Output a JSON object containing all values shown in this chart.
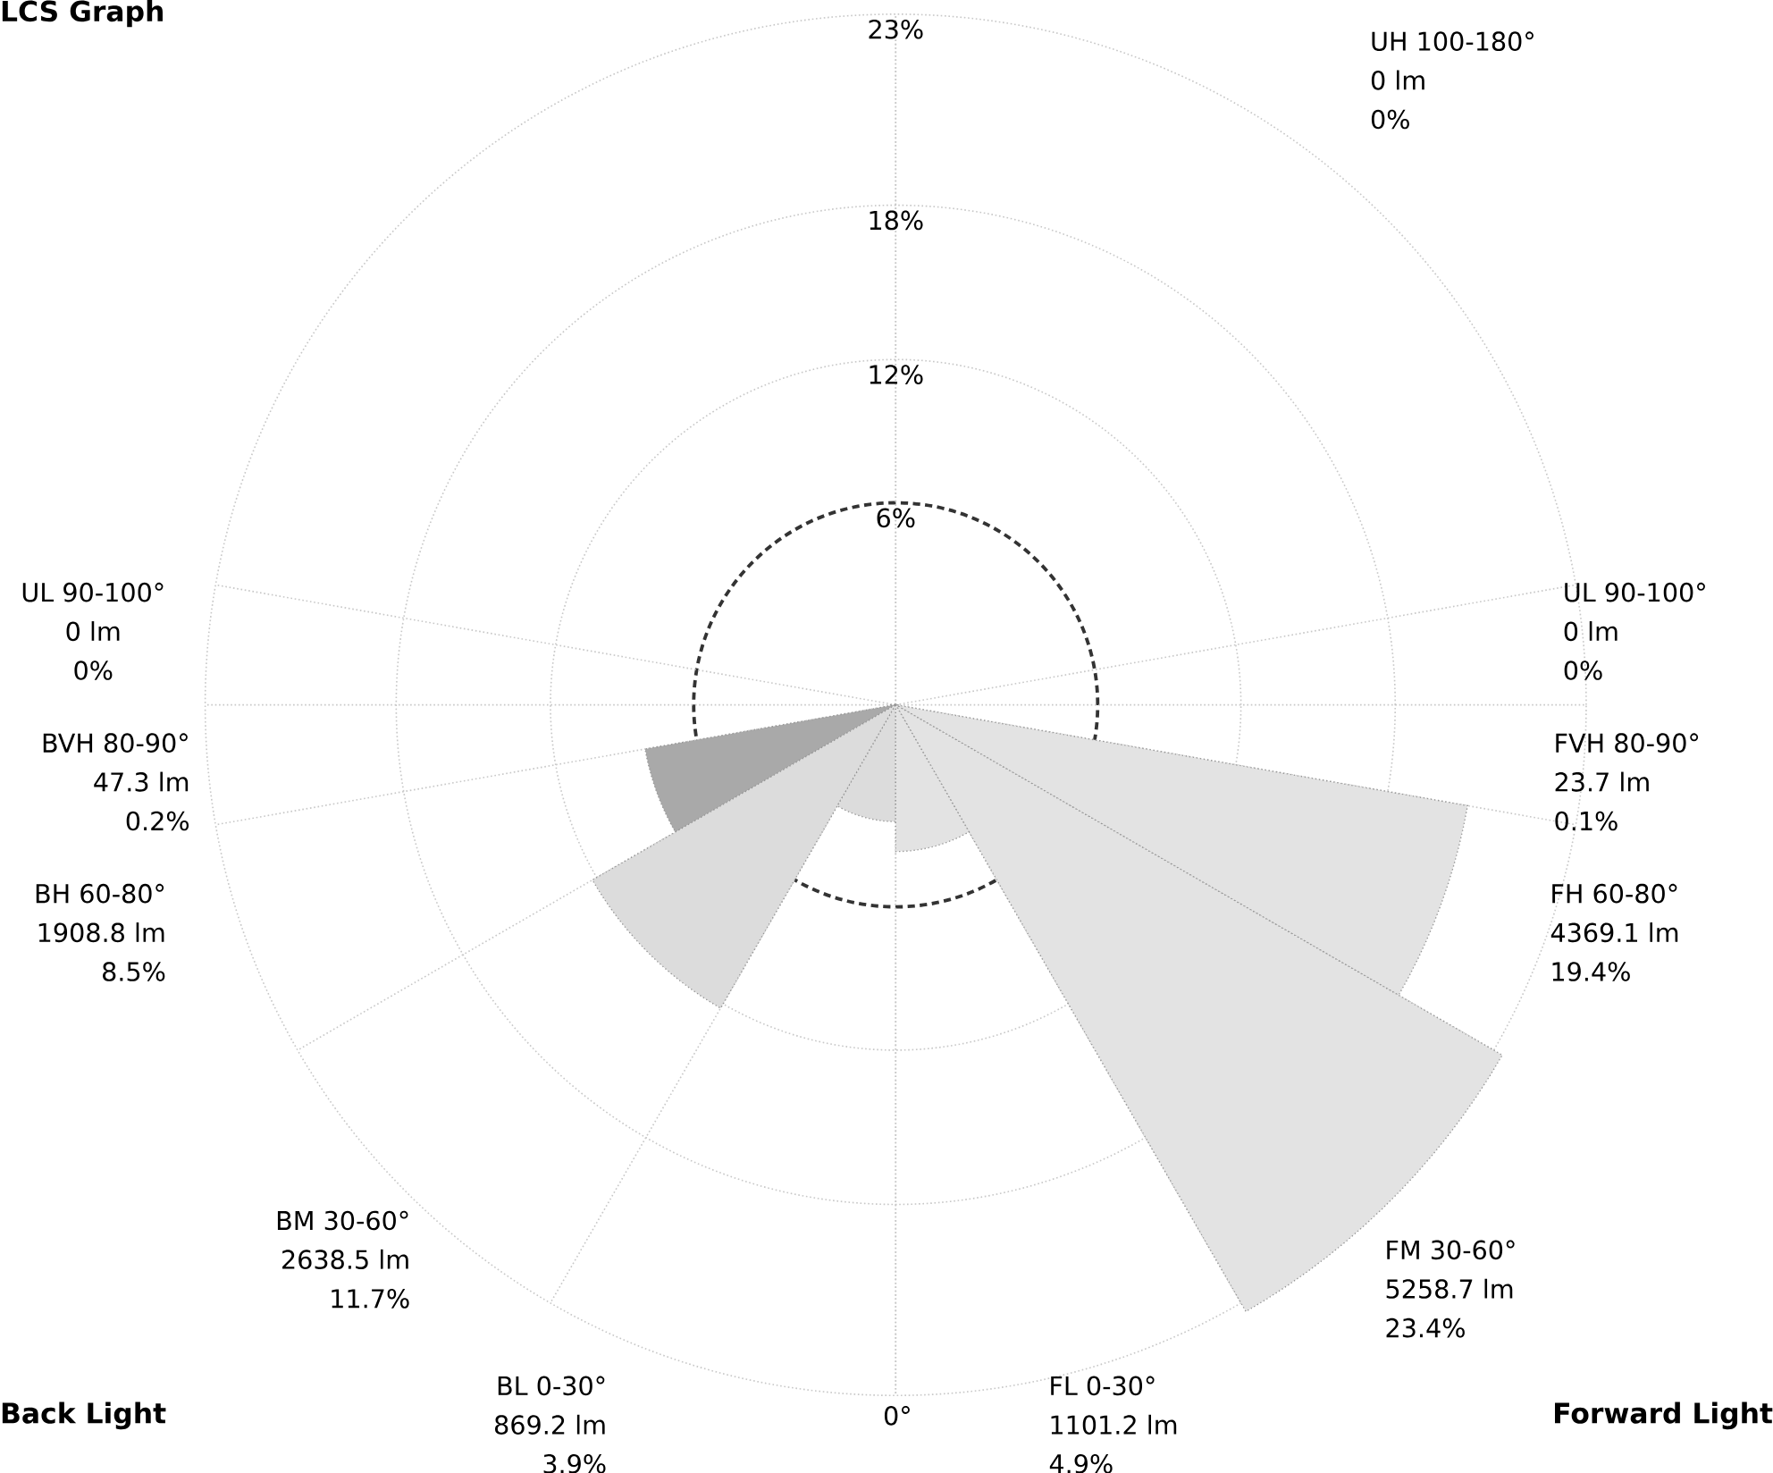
{
  "chart_data": {
    "type": "other",
    "title": "LCS Graph",
    "categories": [
      "UH 100-180°",
      "UL 90-100°",
      "UL 90-100°",
      "BVH 80-90°",
      "FVH 80-90°",
      "BH 60-80°",
      "FH 60-80°",
      "BM 30-60°",
      "FM 30-60°",
      "BL 0-30°",
      "FL 0-30°"
    ],
    "values": [
      0,
      0,
      0,
      0.2,
      0.1,
      8.5,
      19.4,
      11.7,
      23.4,
      3.9,
      4.9
    ],
    "value_labels": [
      "0%",
      "0%",
      "0%",
      "0.2%",
      "0.1%",
      "8.5%",
      "19.4%",
      "11.7%",
      "23.4%",
      "3.9%",
      "4.9%"
    ],
    "colors": [
      "#d9d9d9",
      "#d9d9d9",
      "#d9d9d9",
      "#d9d9d9",
      "#d9d9d9",
      "#a9a9a9",
      "#e3e3e3",
      "#dcdcdc",
      "#e3e3e3",
      "#dcdcdc",
      "#e3e3e3"
    ],
    "annotations": [
      "Back Light",
      "Forward Light",
      "0°",
      "6%",
      "12%",
      "18%",
      "23%",
      "0 lm",
      "0 lm",
      "0 lm",
      "47.3 lm",
      "23.7 lm",
      "1908.8 lm",
      "4369.1 lm",
      "2638.5 lm",
      "5258.7 lm",
      "869.2 lm",
      "1101.2 lm"
    ]
  }
}
